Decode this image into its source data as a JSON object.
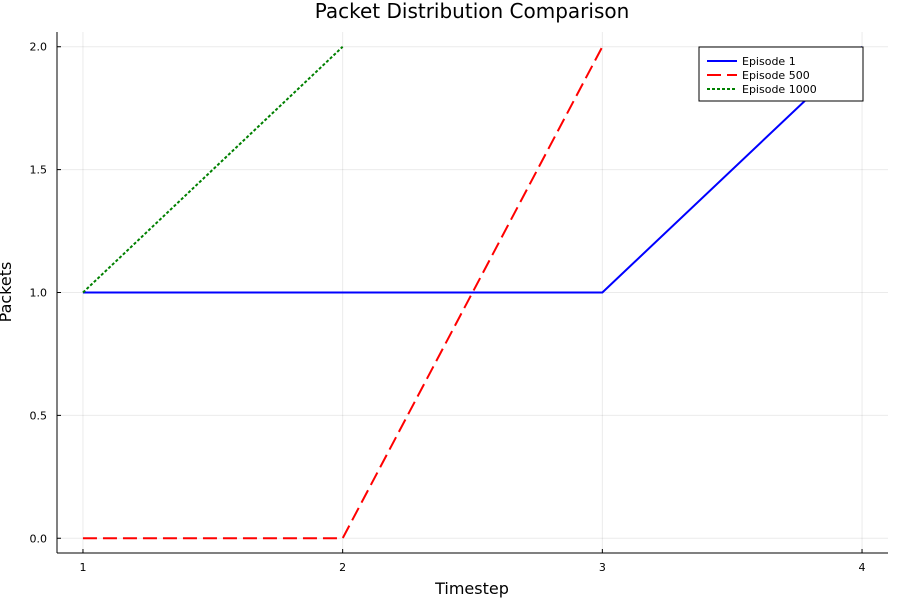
{
  "chart_data": {
    "type": "line",
    "title": "Packet Distribution Comparison",
    "xlabel": "Timestep",
    "ylabel": "Packets",
    "xlim": [
      0.9,
      4.1
    ],
    "ylim": [
      -0.06,
      2.06
    ],
    "xticks": [
      1,
      2,
      3,
      4
    ],
    "xtick_labels": [
      "1",
      "2",
      "3",
      "4"
    ],
    "yticks": [
      0,
      0.5,
      1,
      1.5,
      2
    ],
    "ytick_labels": [
      "0.0",
      "0.5",
      "1.0",
      "1.5",
      "2.0"
    ],
    "grid": true,
    "legend_position": "top-right",
    "series": [
      {
        "name": "Episode 1",
        "x": [
          1,
          2,
          3,
          4
        ],
        "y": [
          1,
          1,
          1,
          2
        ],
        "color": "#0000ff",
        "style": "solid"
      },
      {
        "name": "Episode 500",
        "x": [
          1,
          2,
          3
        ],
        "y": [
          0,
          0,
          2
        ],
        "color": "#ff0000",
        "style": "dashed"
      },
      {
        "name": "Episode 1000",
        "x": [
          1,
          2
        ],
        "y": [
          1,
          2
        ],
        "color": "#008000",
        "style": "dotted"
      }
    ]
  }
}
